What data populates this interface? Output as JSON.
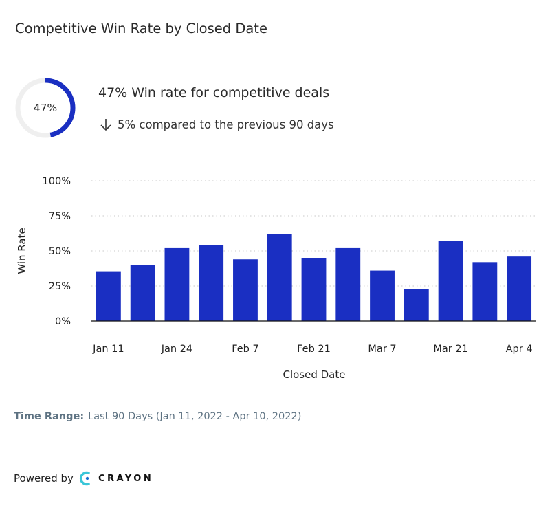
{
  "title": "Competitive Win Rate by Closed Date",
  "summary": {
    "donut_value": 47,
    "donut_label": "47%",
    "headline": "47% Win rate for competitive deals",
    "comparison": "5% compared to the previous 90 days",
    "arrow_icon": "arrow-down-icon"
  },
  "chart_data": {
    "type": "bar",
    "title": "",
    "xlabel": "Closed Date",
    "ylabel": "Win Rate",
    "ylim": [
      0,
      100
    ],
    "yticks": [
      "0%",
      "25%",
      "50%",
      "75%",
      "100%"
    ],
    "ytick_values": [
      0,
      25,
      50,
      75,
      100
    ],
    "x_tick_labels": [
      "Jan 11",
      "Jan 24",
      "Feb 7",
      "Feb 21",
      "Mar 7",
      "Mar 21",
      "Apr 4"
    ],
    "x_tick_positions": [
      0,
      2,
      4,
      6,
      8,
      10,
      12
    ],
    "values": [
      35,
      40,
      52,
      54,
      44,
      62,
      45,
      52,
      36,
      23,
      57,
      42,
      46
    ],
    "grid": true,
    "color": "#1a2fc2"
  },
  "time_range": {
    "label": "Time Range:",
    "value": "Last 90 Days (Jan 11,  2022  - Apr 10,  2022)"
  },
  "footer": {
    "powered_by": "Powered by",
    "brand": "CRAYON"
  },
  "colors": {
    "accent": "#1a2fc2",
    "track": "#efefef",
    "muted": "#5d7282"
  }
}
